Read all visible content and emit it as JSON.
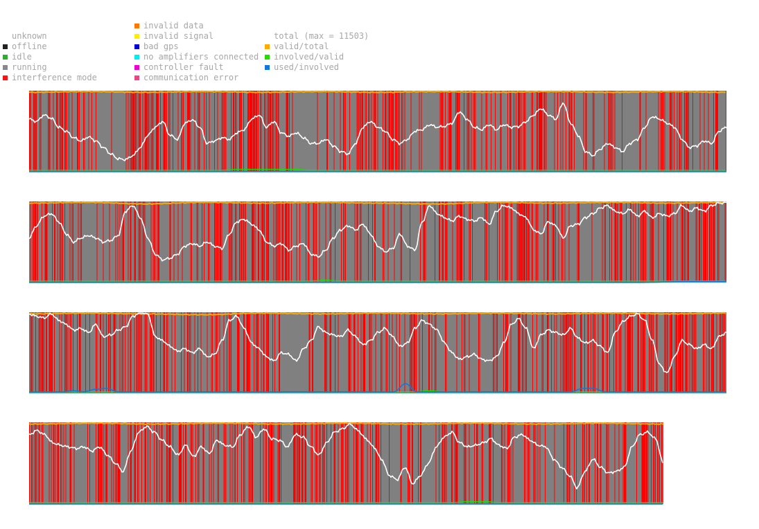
{
  "legend": {
    "col1": [
      {
        "label": "unknown",
        "color": ""
      },
      {
        "label": "offline",
        "color": "#222222"
      },
      {
        "label": "idle",
        "color": "#33aa33"
      },
      {
        "label": "running",
        "color": "#888888"
      },
      {
        "label": "interference mode",
        "color": "#ff1111"
      }
    ],
    "col2": [
      {
        "label": "invalid data",
        "color": "#ff7700"
      },
      {
        "label": "invalid signal",
        "color": "#ffee00"
      },
      {
        "label": "bad gps",
        "color": "#0000dd"
      },
      {
        "label": "no amplifiers connected",
        "color": "#00eeee"
      },
      {
        "label": "controller fault",
        "color": "#ee00cc"
      },
      {
        "label": "communication error",
        "color": "#ee4488"
      }
    ],
    "col3": [
      {
        "label": "total (max = 11503)",
        "color": ""
      },
      {
        "label": "valid/total",
        "color": "#ffaa00"
      },
      {
        "label": "involved/valid",
        "color": "#22dd00"
      },
      {
        "label": "used/involved",
        "color": "#1177dd"
      }
    ]
  },
  "chart_data": {
    "type": "area",
    "max_total": 11503,
    "colors": {
      "running": "#808080",
      "interference": "#ff0000",
      "total": "#ffffff",
      "valid": "#ffaa00",
      "involved": "#22dd00",
      "used": "#1177dd",
      "base": "#00cc99"
    },
    "panels": [
      {
        "total_fraction": [
          0.65,
          0.62,
          0.7,
          0.66,
          0.55,
          0.5,
          0.42,
          0.38,
          0.43,
          0.38,
          0.3,
          0.22,
          0.16,
          0.15,
          0.2,
          0.3,
          0.45,
          0.55,
          0.62,
          0.45,
          0.4,
          0.6,
          0.64,
          0.55,
          0.35,
          0.38,
          0.42,
          0.4,
          0.48,
          0.52,
          0.65,
          0.7,
          0.55,
          0.62,
          0.48,
          0.44,
          0.48,
          0.42,
          0.35,
          0.35,
          0.4,
          0.32,
          0.25,
          0.22,
          0.35,
          0.55,
          0.62,
          0.55,
          0.5,
          0.4,
          0.35,
          0.4,
          0.5,
          0.52,
          0.58,
          0.55,
          0.56,
          0.6,
          0.74,
          0.65,
          0.55,
          0.52,
          0.58,
          0.52,
          0.58,
          0.55,
          0.56,
          0.62,
          0.7,
          0.78,
          0.7,
          0.65,
          0.85,
          0.6,
          0.45,
          0.25,
          0.2,
          0.28,
          0.35,
          0.3,
          0.25,
          0.35,
          0.4,
          0.55,
          0.68,
          0.65,
          0.6,
          0.55,
          0.4,
          0.3,
          0.32,
          0.38,
          0.35,
          0.5,
          0.55
        ],
        "interference": [
          0.8,
          0.9,
          0.2,
          0.7,
          0.9,
          0.8,
          0.5,
          0.3,
          0.2,
          0.05,
          0.05,
          0.1,
          0.3,
          0.5,
          0.85,
          0.9,
          0.9,
          0.85,
          0.75,
          0.9,
          0.85,
          0.75,
          0.6,
          0.65,
          0.6,
          0.7,
          0.75,
          0.85,
          0.85,
          0.9,
          0.9,
          0.7,
          0.9,
          0.9,
          0.6,
          0.2,
          0.1,
          0.05,
          0.4,
          0.4,
          0.45,
          0.4,
          0.55,
          0.5,
          0.9,
          0.95,
          0.75,
          0.7,
          0.65,
          0.65,
          0.45,
          0.6,
          0.65,
          0.55,
          0.45,
          0.5,
          0.4,
          0.5,
          0.55,
          0.5,
          0.5,
          0.55,
          0.45,
          0.6,
          0.55,
          0.5,
          0.6,
          0.5,
          0.4,
          0.4,
          0.35,
          0.35,
          0.35,
          0.4,
          0.45,
          0.35,
          0.35,
          0.4,
          0.4,
          0.35,
          0.3,
          0.2,
          0.2,
          0.3,
          0.8,
          0.85,
          0.85,
          0.75,
          0.7,
          0.5,
          0.3,
          0.45,
          0.5,
          0.4
        ],
        "valid_fraction": [
          0.98,
          0.99,
          0.98,
          0.99,
          0.98,
          0.99,
          0.98,
          0.99,
          0.98,
          0.99,
          0.98,
          0.99,
          0.98
        ],
        "involved_fraction": [
          0.02,
          0.02,
          0.02,
          0.02,
          0.02,
          0.02,
          0.02,
          0.02,
          0.02,
          0.02,
          0.02,
          0.02,
          0.02,
          0.02,
          0.03,
          0.03,
          0.03,
          0.03,
          0.03,
          0.02,
          0.02,
          0.02,
          0.02,
          0.02,
          0.02,
          0.02,
          0.02,
          0.02,
          0.02,
          0.02,
          0.02,
          0.02,
          0.02,
          0.02,
          0.02,
          0.02,
          0.02,
          0.02,
          0.02,
          0.02,
          0.02,
          0.02,
          0.02,
          0.02,
          0.02,
          0.02,
          0.02,
          0.02
        ],
        "used_fraction": [
          0.0,
          0.0,
          0.0,
          0.0,
          0.0,
          0.0,
          0.0,
          0.0
        ]
      },
      {
        "total_fraction": [
          0.55,
          0.7,
          0.82,
          0.85,
          0.75,
          0.6,
          0.5,
          0.55,
          0.58,
          0.55,
          0.5,
          0.52,
          0.58,
          0.88,
          0.95,
          0.8,
          0.55,
          0.35,
          0.28,
          0.3,
          0.35,
          0.45,
          0.48,
          0.45,
          0.5,
          0.45,
          0.42,
          0.6,
          0.75,
          0.78,
          0.72,
          0.65,
          0.5,
          0.45,
          0.48,
          0.4,
          0.45,
          0.48,
          0.35,
          0.32,
          0.4,
          0.55,
          0.65,
          0.7,
          0.65,
          0.72,
          0.6,
          0.45,
          0.38,
          0.42,
          0.6,
          0.45,
          0.4,
          0.75,
          0.95,
          0.85,
          0.8,
          0.76,
          0.82,
          0.78,
          0.76,
          0.8,
          0.72,
          0.88,
          0.95,
          0.92,
          0.85,
          0.8,
          0.65,
          0.6,
          0.75,
          0.7,
          0.55,
          0.7,
          0.72,
          0.8,
          0.85,
          0.92,
          0.95,
          0.88,
          0.85,
          0.9,
          0.82,
          0.88,
          0.8,
          0.85,
          0.82,
          0.85,
          0.95,
          0.88,
          0.92,
          0.88,
          0.95,
          0.98,
          0.99
        ],
        "interference": [
          0.9,
          0.9,
          0.8,
          0.8,
          0.65,
          0.5,
          0.4,
          0.3,
          0.3,
          0.3,
          0.2,
          0.3,
          0.9,
          0.95,
          0.9,
          0.9,
          0.7,
          0.5,
          0.5,
          0.45,
          0.5,
          0.55,
          0.5,
          0.45,
          0.55,
          0.6,
          0.7,
          0.75,
          0.75,
          0.9,
          0.9,
          0.9,
          0.85,
          0.9,
          0.85,
          0.8,
          0.7,
          0.85,
          0.8,
          0.6,
          0.55,
          0.65,
          0.4,
          0.35,
          0.45,
          0.5,
          0.6,
          0.55,
          0.3,
          0.6,
          0.55,
          0.6,
          0.55,
          0.45,
          0.4,
          0.6,
          0.5,
          0.55,
          0.55,
          0.45,
          0.5,
          0.5,
          0.55,
          0.7,
          0.75,
          0.85,
          0.9,
          0.95,
          0.9,
          0.85,
          0.7,
          0.6,
          0.45,
          0.4,
          0.3,
          0.35,
          0.45,
          0.45,
          0.6,
          0.7,
          0.65,
          0.75,
          0.8,
          0.9,
          0.85,
          0.85,
          0.8,
          0.75,
          0.8,
          0.9,
          0.9,
          0.85,
          0.8,
          0.8
        ],
        "valid_fraction": [
          0.98,
          0.99,
          0.97,
          0.99,
          0.98,
          0.99,
          0.98,
          0.97,
          0.99,
          0.98,
          0.99,
          0.98,
          0.99
        ],
        "involved_fraction": [
          0.02,
          0.02,
          0.02,
          0.02,
          0.02,
          0.02,
          0.02,
          0.02,
          0.02,
          0.02,
          0.02,
          0.02,
          0.02,
          0.02,
          0.02,
          0.02,
          0.02,
          0.02,
          0.02,
          0.02,
          0.03,
          0.02,
          0.02,
          0.02,
          0.02,
          0.02,
          0.02,
          0.02,
          0.02,
          0.02,
          0.02,
          0.02,
          0.02,
          0.02,
          0.02,
          0.02,
          0.02,
          0.02,
          0.02,
          0.02,
          0.02,
          0.02,
          0.02,
          0.02,
          0.02,
          0.02,
          0.02,
          0.02
        ],
        "used_fraction": [
          0.0,
          0.0,
          0.0,
          0.0,
          0.0,
          0.0,
          0.0,
          0.0,
          0.0,
          0.0,
          0.0,
          0.0,
          0.0,
          0.0,
          0.0,
          0.01,
          0.01
        ]
      },
      {
        "total_fraction": [
          0.98,
          0.95,
          0.93,
          0.98,
          0.9,
          0.85,
          0.78,
          0.8,
          0.75,
          0.85,
          0.7,
          0.72,
          0.78,
          0.82,
          0.95,
          1.0,
          0.98,
          0.7,
          0.65,
          0.58,
          0.52,
          0.55,
          0.5,
          0.55,
          0.45,
          0.48,
          0.65,
          0.9,
          0.95,
          0.8,
          0.62,
          0.55,
          0.45,
          0.4,
          0.5,
          0.48,
          0.4,
          0.55,
          0.65,
          0.82,
          0.75,
          0.72,
          0.7,
          0.78,
          0.7,
          0.6,
          0.65,
          0.75,
          0.8,
          0.7,
          0.58,
          0.62,
          0.8,
          0.9,
          0.85,
          0.78,
          0.62,
          0.5,
          0.42,
          0.45,
          0.48,
          0.42,
          0.4,
          0.45,
          0.62,
          0.85,
          0.92,
          0.8,
          0.55,
          0.72,
          0.78,
          0.75,
          0.72,
          0.8,
          0.68,
          0.62,
          0.65,
          0.58,
          0.5,
          0.75,
          0.88,
          0.95,
          0.98,
          0.9,
          0.65,
          0.35,
          0.25,
          0.45,
          0.65,
          0.6,
          0.55,
          0.6,
          0.55,
          0.7,
          0.75
        ],
        "interference": [
          0.95,
          0.95,
          0.9,
          0.9,
          0.8,
          0.75,
          0.6,
          0.55,
          0.65,
          0.75,
          0.85,
          0.85,
          0.9,
          0.85,
          0.8,
          0.85,
          0.6,
          0.55,
          0.5,
          0.45,
          0.45,
          0.5,
          0.55,
          0.6,
          0.75,
          0.75,
          0.8,
          0.8,
          0.85,
          0.8,
          0.7,
          0.6,
          0.55,
          0.3,
          0.2,
          0.2,
          0.25,
          0.2,
          0.4,
          0.5,
          0.45,
          0.4,
          0.55,
          0.65,
          0.55,
          0.5,
          0.45,
          0.6,
          0.6,
          0.55,
          0.55,
          0.5,
          0.35,
          0.3,
          0.3,
          0.35,
          0.45,
          0.4,
          0.5,
          0.45,
          0.45,
          0.4,
          0.35,
          0.45,
          0.45,
          0.5,
          0.5,
          0.6,
          0.7,
          0.75,
          0.8,
          0.85,
          0.9,
          0.9,
          0.9,
          0.85,
          0.8,
          0.8,
          0.85,
          0.8,
          0.75,
          0.8,
          0.85,
          0.9,
          0.9,
          0.95,
          0.9,
          0.85,
          0.8,
          0.8,
          0.9
        ],
        "valid_fraction": [
          0.98,
          0.99,
          0.98,
          0.97,
          0.99,
          0.98,
          0.99,
          0.98,
          0.99,
          0.98,
          0.99,
          0.98,
          0.99
        ],
        "involved_fraction": [
          0.02,
          0.02,
          0.02,
          0.02,
          0.02,
          0.02,
          0.02,
          0.02,
          0.02,
          0.02,
          0.02,
          0.02,
          0.02,
          0.02,
          0.02,
          0.02,
          0.02,
          0.02,
          0.02,
          0.02,
          0.02,
          0.02,
          0.02,
          0.02,
          0.02,
          0.02,
          0.02,
          0.03,
          0.02,
          0.02,
          0.02,
          0.02,
          0.02,
          0.02,
          0.02,
          0.02,
          0.02,
          0.02,
          0.02,
          0.02,
          0.02,
          0.02,
          0.02,
          0.02,
          0.02,
          0.02,
          0.02,
          0.02
        ],
        "used_fraction": [
          0.02,
          0.02,
          0.02,
          0.02,
          0.03,
          0.02,
          0.05,
          0.06,
          0.02,
          0.02,
          0.02,
          0.02,
          0.02,
          0.02,
          0.02,
          0.02,
          0.02,
          0.02,
          0.02,
          0.02,
          0.02,
          0.02,
          0.02,
          0.02,
          0.02,
          0.02,
          0.02,
          0.02,
          0.02,
          0.02,
          0.02,
          0.02,
          0.02,
          0.02,
          0.12,
          0.02,
          0.02,
          0.02,
          0.02,
          0.02,
          0.02,
          0.02,
          0.02,
          0.02,
          0.02,
          0.02,
          0.02,
          0.02,
          0.02,
          0.02,
          0.06,
          0.06,
          0.02,
          0.02,
          0.02,
          0.02,
          0.02,
          0.02,
          0.02,
          0.02,
          0.02,
          0.02,
          0.02,
          0.02
        ]
      },
      {
        "total_fraction": [
          0.85,
          0.9,
          0.85,
          0.75,
          0.72,
          0.7,
          0.68,
          0.7,
          0.65,
          0.7,
          0.6,
          0.5,
          0.4,
          0.65,
          0.88,
          0.95,
          0.88,
          0.78,
          0.7,
          0.6,
          0.72,
          0.58,
          0.7,
          0.62,
          0.78,
          0.72,
          0.7,
          0.85,
          0.95,
          0.82,
          0.92,
          0.8,
          0.78,
          0.7,
          0.85,
          0.82,
          0.7,
          0.6,
          0.75,
          0.88,
          0.92,
          0.98,
          0.9,
          0.8,
          0.7,
          0.55,
          0.35,
          0.3,
          0.45,
          0.25,
          0.35,
          0.5,
          0.7,
          0.82,
          0.88,
          0.75,
          0.7,
          0.72,
          0.75,
          0.8,
          0.72,
          0.68,
          0.82,
          0.85,
          0.78,
          0.72,
          0.7,
          0.55,
          0.45,
          0.35,
          0.2,
          0.4,
          0.55,
          0.45,
          0.38,
          0.4,
          0.45,
          0.7,
          0.85,
          0.88,
          0.8,
          0.5
        ],
        "interference": [
          0.95,
          0.9,
          0.85,
          0.6,
          0.5,
          0.45,
          0.55,
          0.5,
          0.45,
          0.55,
          0.6,
          0.7,
          0.8,
          0.75,
          0.7,
          0.7,
          0.6,
          0.5,
          0.55,
          0.6,
          0.65,
          0.7,
          0.6,
          0.6,
          0.65,
          0.75,
          0.8,
          0.85,
          0.85,
          0.8,
          0.85,
          0.8,
          0.75,
          0.7,
          0.75,
          0.7,
          0.8,
          0.85,
          0.8,
          0.75,
          0.8,
          0.85,
          0.8,
          0.7,
          0.6,
          0.55,
          0.45,
          0.35,
          0.3,
          0.35,
          0.5,
          0.45,
          0.55,
          0.65,
          0.6,
          0.5,
          0.55,
          0.55,
          0.5,
          0.45,
          0.45,
          0.5,
          0.45,
          0.5,
          0.55,
          0.5,
          0.45,
          0.5,
          0.5,
          0.55,
          0.65,
          0.6,
          0.55,
          0.5,
          0.45,
          0.5,
          0.6,
          0.7,
          0.75,
          0.8,
          0.7,
          0.65
        ],
        "valid_fraction": [
          0.98,
          0.99,
          0.98,
          0.99,
          0.98,
          0.99,
          0.98,
          0.99,
          0.98,
          0.99,
          0.98
        ],
        "involved_fraction": [
          0.02,
          0.02,
          0.02,
          0.02,
          0.02,
          0.02,
          0.02,
          0.02,
          0.02,
          0.02,
          0.02,
          0.02,
          0.02,
          0.02,
          0.02,
          0.02,
          0.02,
          0.02,
          0.02,
          0.02,
          0.02,
          0.02,
          0.02,
          0.02,
          0.02,
          0.02,
          0.02,
          0.03,
          0.03,
          0.02,
          0.02,
          0.02,
          0.02,
          0.02,
          0.02,
          0.02,
          0.02,
          0.02,
          0.02,
          0.02
        ],
        "used_fraction": [
          0.0,
          0.0,
          0.0,
          0.0,
          0.0,
          0.0,
          0.0,
          0.0
        ]
      }
    ]
  }
}
